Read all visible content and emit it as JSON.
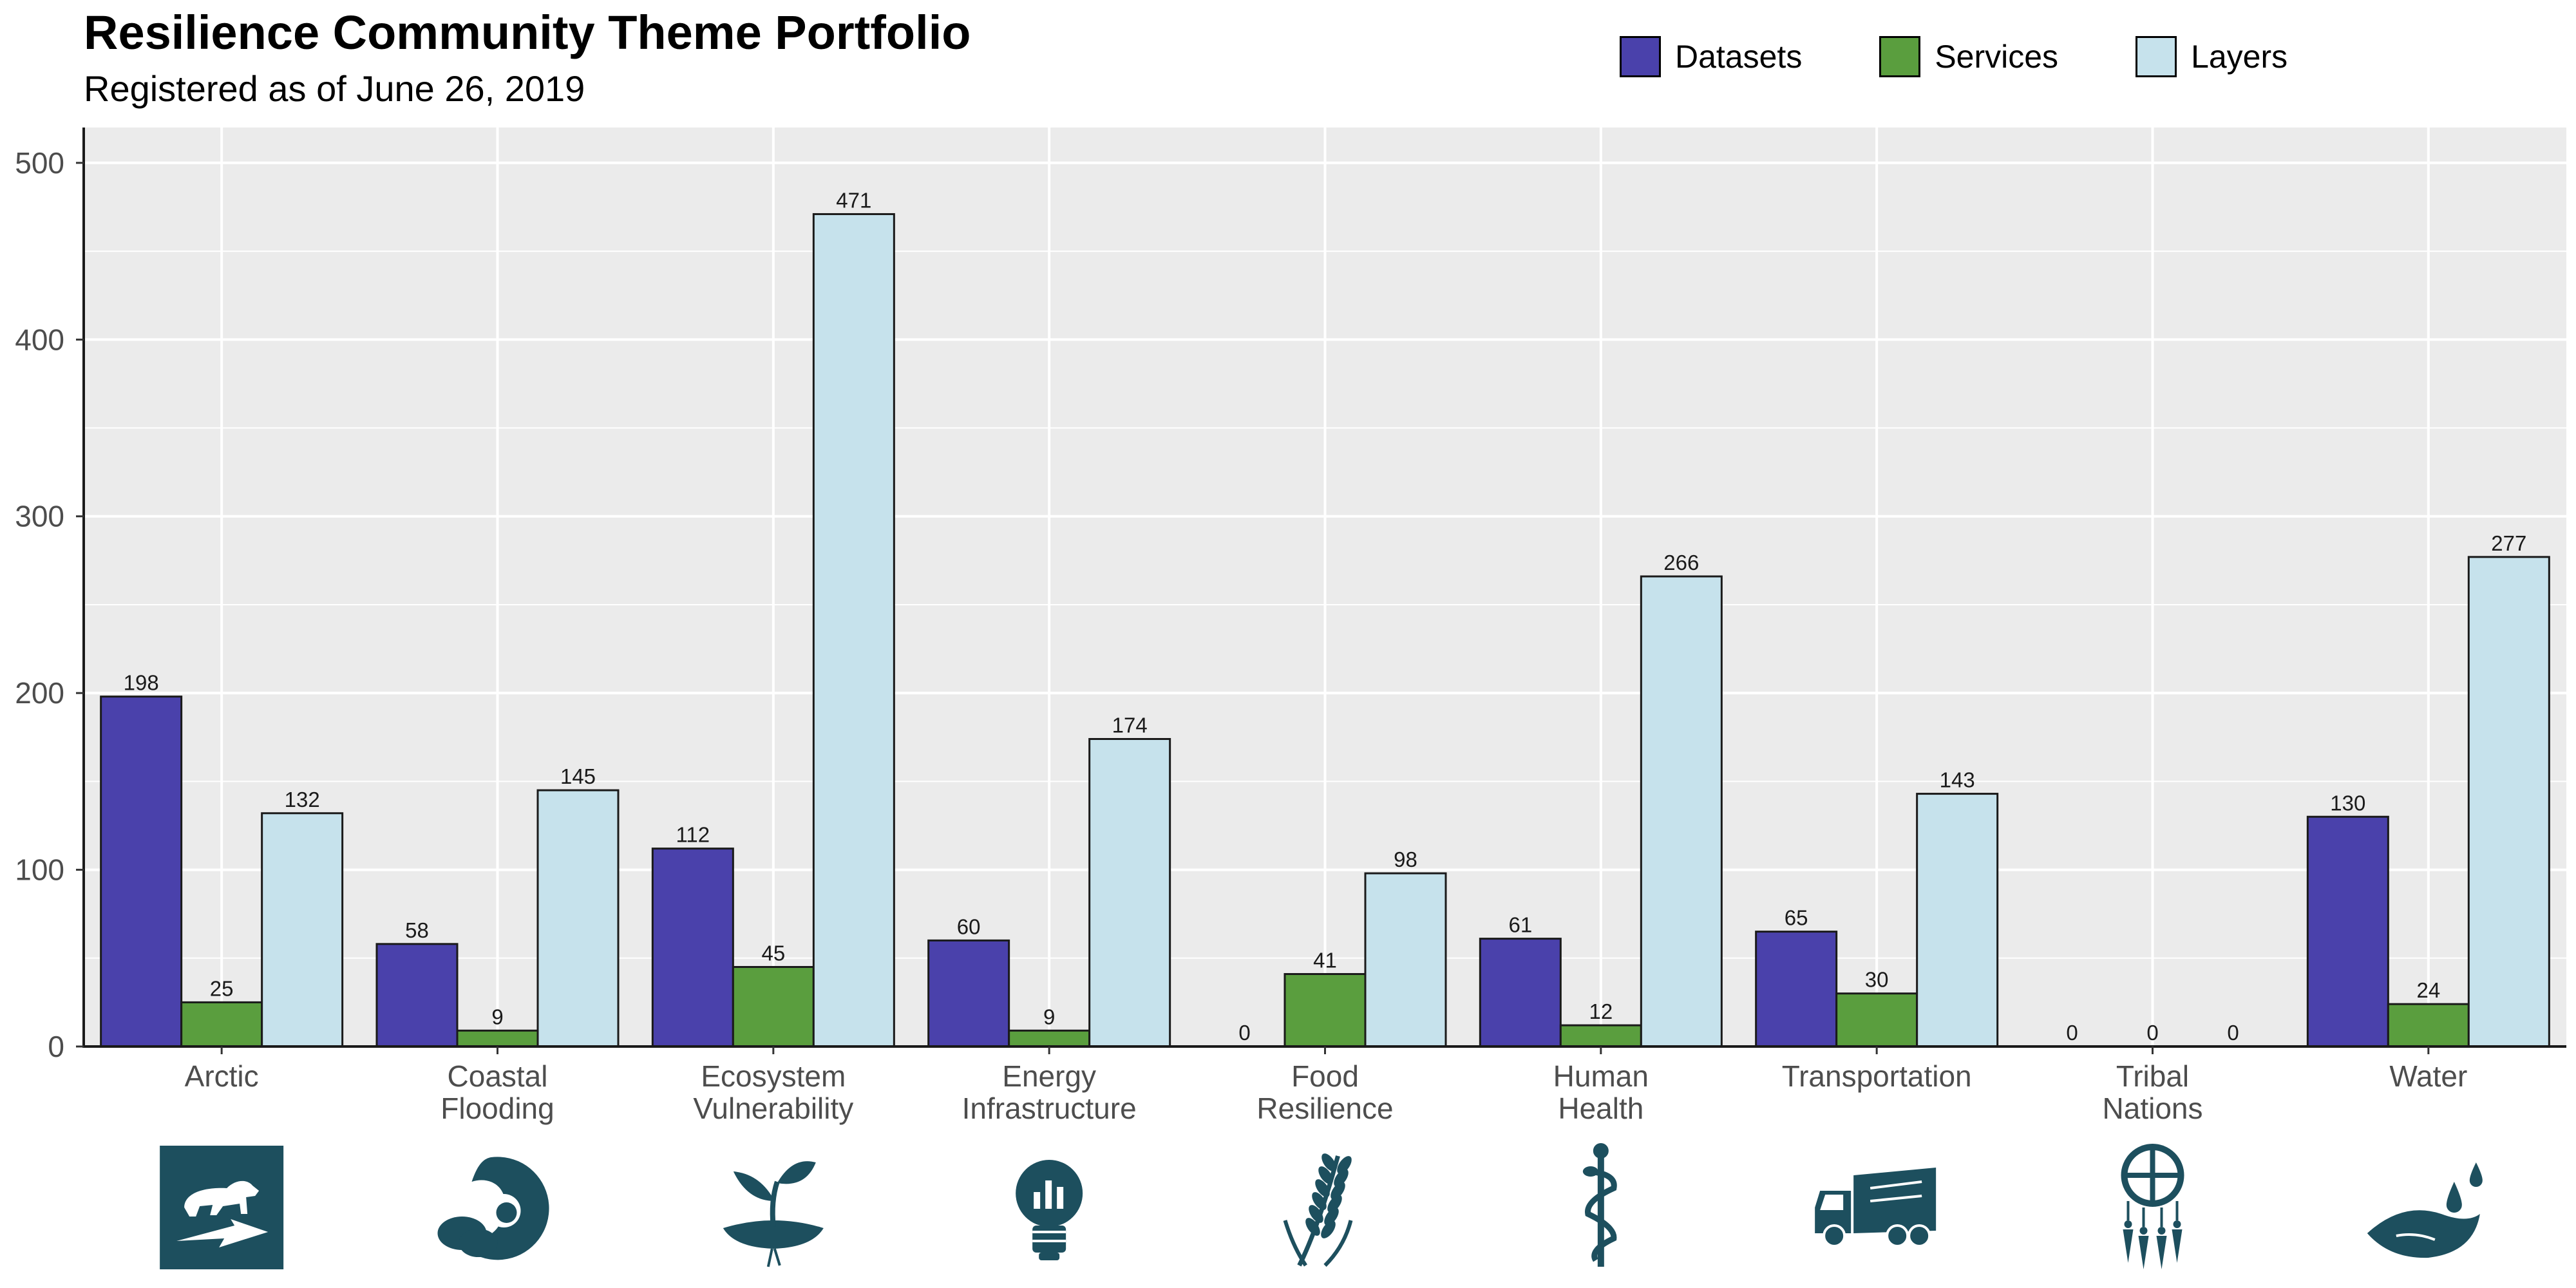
{
  "chart_data": {
    "type": "bar",
    "title": "Resilience Community Theme Portfolio",
    "subtitle": "Registered as of June 26, 2019",
    "categories": [
      [
        "Arctic"
      ],
      [
        "Coastal",
        "Flooding"
      ],
      [
        "Ecosystem",
        "Vulnerability"
      ],
      [
        "Energy",
        "Infrastructure"
      ],
      [
        "Food",
        "Resilience"
      ],
      [
        "Human",
        "Health"
      ],
      [
        "Transportation"
      ],
      [
        "Tribal",
        "Nations"
      ],
      [
        "Water"
      ]
    ],
    "series": [
      {
        "name": "Datasets",
        "color": "#4a41ab",
        "values": [
          198,
          58,
          112,
          60,
          0,
          61,
          65,
          0,
          130
        ]
      },
      {
        "name": "Services",
        "color": "#5a9e3e",
        "values": [
          25,
          9,
          45,
          9,
          41,
          12,
          30,
          0,
          24
        ]
      },
      {
        "name": "Layers",
        "color": "#c6e2ec",
        "values": [
          132,
          145,
          471,
          174,
          98,
          266,
          143,
          0,
          277
        ]
      }
    ],
    "ylim": [
      0,
      520
    ],
    "yticks": [
      0,
      100,
      200,
      300,
      400,
      500
    ],
    "xlabel": "",
    "ylabel": "",
    "legend_position": "top-right",
    "grid": true,
    "icons": [
      "polar-bear-icon",
      "coastal-flooding-icon",
      "sprout-icon",
      "lightbulb-chart-icon",
      "wheat-icon",
      "caduceus-icon",
      "truck-icon",
      "dreamcatcher-icon",
      "water-drop-icon"
    ],
    "icon_color": "#1d4f5e",
    "panel_color": "#ebebeb"
  }
}
